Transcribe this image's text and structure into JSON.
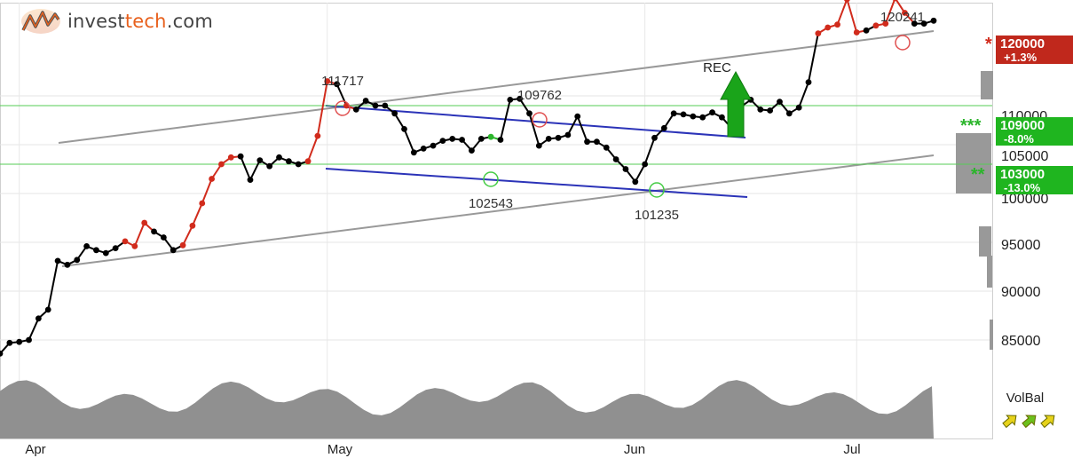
{
  "brand": {
    "name_prefix": "invest",
    "name_accent": "tech",
    "name_suffix": ".com"
  },
  "indicator": {
    "label": "VolBal",
    "arrows": [
      "up",
      "up",
      "up"
    ]
  },
  "colors": {
    "price_up": "#000000",
    "price_neg": "#d12b1c",
    "price_pos": "#2bb52b",
    "trend": "#999999",
    "channel": "#2b33b8",
    "resistance": "#e07a7a",
    "support": "#55cc55",
    "volume": "#909090",
    "signal": "#1aa41a"
  },
  "chart_data": {
    "type": "line",
    "title": "",
    "xlabel": "",
    "ylabel": "",
    "ylim": [
      83000,
      122500
    ],
    "x_ticks": [
      "Apr",
      "May",
      "Jun",
      "Jul"
    ],
    "y_ticks": [
      "85000",
      "90000",
      "95000",
      "100000",
      "105000",
      "110000",
      "120000"
    ],
    "grid": true,
    "series": [
      {
        "values": [
          83600,
          84700,
          84800,
          85000,
          87200,
          88100,
          93100,
          92700,
          93200,
          94600,
          94200,
          93900,
          94400,
          95100,
          94600,
          97000,
          96100,
          95500,
          94200,
          94700,
          96700,
          99000,
          101500,
          103000,
          103700,
          103800,
          101400,
          103400,
          102800,
          103700,
          103300,
          103000,
          103300,
          105900,
          111500,
          111200,
          109000,
          108600,
          109500,
          109000,
          109000,
          108200,
          106600,
          104200,
          104600,
          104900,
          105400,
          105600,
          105500,
          104400,
          105600,
          105800,
          105500,
          109600,
          109700,
          108200,
          104900,
          105600,
          105700,
          106000,
          107900,
          105300,
          105300,
          104700,
          103500,
          102500,
          101200,
          103000,
          105700,
          106700,
          108200,
          108100,
          107900,
          107800,
          108300,
          107800,
          106700,
          108900,
          109600,
          108600,
          108500,
          109400,
          108200,
          108800,
          111400,
          116400,
          117000,
          117300,
          119900,
          116500,
          116700,
          117200,
          117400,
          120000,
          118500,
          117400,
          117400,
          117700
        ]
      }
    ],
    "annotations": [
      {
        "label": "111717",
        "value": 111717,
        "type": "top"
      },
      {
        "label": "109762",
        "value": 109762,
        "type": "top"
      },
      {
        "label": "102543",
        "value": 102543,
        "type": "bottom"
      },
      {
        "label": "101235",
        "value": 101235,
        "type": "bottom"
      },
      {
        "label": "120241",
        "value": 120241,
        "type": "top"
      },
      {
        "label": "REC",
        "type": "signal"
      }
    ],
    "levels": [
      {
        "stars": "*",
        "value": "120000",
        "change": "+1.3%",
        "kind": "resistance"
      },
      {
        "stars": "***",
        "value": "109000",
        "change": "-8.0%",
        "kind": "support"
      },
      {
        "stars": "**",
        "value": "103000",
        "change": "-13.0%",
        "kind": "support"
      }
    ]
  }
}
